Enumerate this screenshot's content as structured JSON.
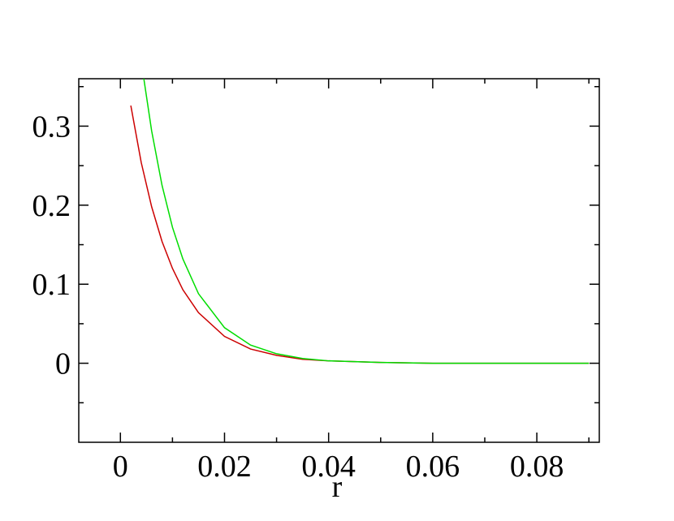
{
  "chart_data": {
    "type": "line",
    "xlabel": "r",
    "xlim": [
      -0.008,
      0.092
    ],
    "ylim": [
      -0.1,
      0.36
    ],
    "xticks": [
      0,
      0.02,
      0.04,
      0.06,
      0.08
    ],
    "yticks": [
      0,
      0.1,
      0.2,
      0.3
    ],
    "xticks_minor": [
      0.01,
      0.03,
      0.05,
      0.07,
      0.09
    ],
    "yticks_minor": [
      -0.05,
      0.05,
      0.15,
      0.25,
      0.35
    ],
    "series": [
      {
        "color": "#cc0000",
        "x": [
          0.002,
          0.004,
          0.006,
          0.008,
          0.01,
          0.012,
          0.015,
          0.02,
          0.025,
          0.03,
          0.035,
          0.04,
          0.05,
          0.06,
          0.07,
          0.08,
          0.09
        ],
        "values": [
          0.326,
          0.254,
          0.198,
          0.154,
          0.12,
          0.093,
          0.064,
          0.034,
          0.018,
          0.01,
          0.005,
          0.003,
          0.001,
          0,
          0,
          0,
          0
        ]
      },
      {
        "color": "#00dd00",
        "x": [
          0.0045,
          0.006,
          0.008,
          0.01,
          0.012,
          0.015,
          0.02,
          0.025,
          0.03,
          0.035,
          0.04,
          0.05,
          0.06,
          0.07,
          0.08,
          0.09
        ],
        "values": [
          0.36,
          0.294,
          0.225,
          0.172,
          0.132,
          0.088,
          0.045,
          0.023,
          0.012,
          0.006,
          0.003,
          0.001,
          0,
          0,
          0,
          0
        ]
      }
    ]
  }
}
